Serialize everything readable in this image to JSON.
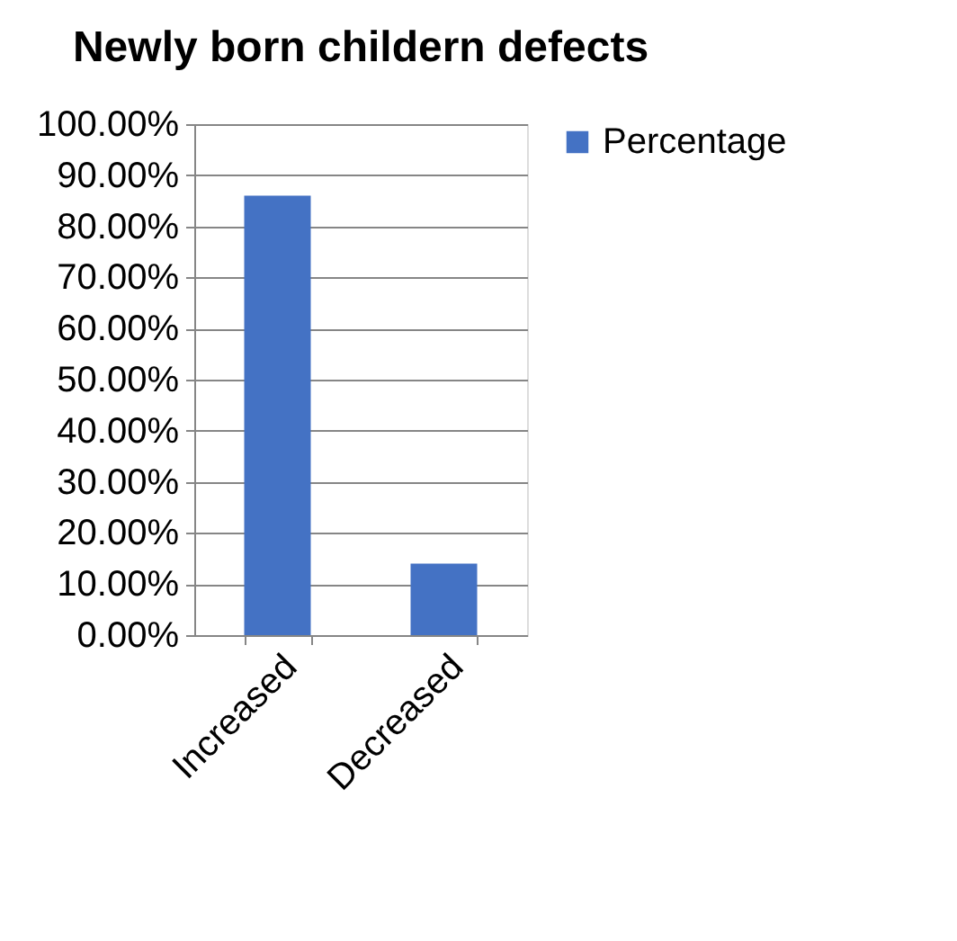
{
  "chart_data": {
    "type": "bar",
    "title": "Newly born childern defects",
    "categories": [
      "Increased",
      "Decreased"
    ],
    "series": [
      {
        "name": "Percentage",
        "color": "#4472c4",
        "values": [
          86,
          14
        ]
      }
    ],
    "ylim": [
      0,
      100
    ],
    "yticks": [
      {
        "value": 0,
        "label": "0.00%"
      },
      {
        "value": 10,
        "label": "10.00%"
      },
      {
        "value": 20,
        "label": "20.00%"
      },
      {
        "value": 30,
        "label": "30.00%"
      },
      {
        "value": 40,
        "label": "40.00%"
      },
      {
        "value": 50,
        "label": "50.00%"
      },
      {
        "value": 60,
        "label": "60.00%"
      },
      {
        "value": 70,
        "label": "70.00%"
      },
      {
        "value": 80,
        "label": "80.00%"
      },
      {
        "value": 90,
        "label": "90.00%"
      },
      {
        "value": 100,
        "label": "100.00%"
      }
    ],
    "grid": "y",
    "legend": "right"
  }
}
